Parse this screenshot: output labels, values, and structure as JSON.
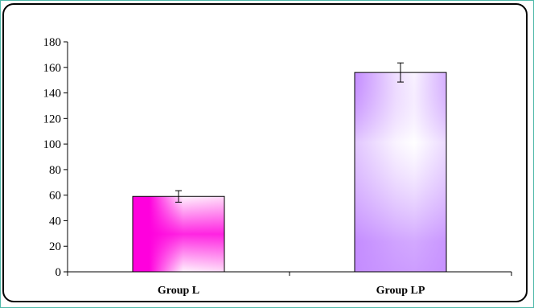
{
  "chart_data": {
    "type": "bar",
    "categories": [
      "Group L",
      "Group LP"
    ],
    "values": [
      59,
      156
    ],
    "errors": [
      4.5,
      7.5
    ],
    "ylim": [
      0,
      180
    ],
    "yticks": [
      0,
      20,
      40,
      60,
      80,
      100,
      120,
      140,
      160,
      180
    ],
    "title": "",
    "xlabel": "",
    "ylabel": "",
    "grid": false,
    "legend": "none",
    "colors": {
      "bar_1_base": "#ff00dd",
      "bar_1_light": "#ffffff",
      "bar_2_base": "#c48cff",
      "bar_2_light": "#ffffff",
      "axis": "#000000",
      "frame_border": "#000000",
      "outer_border": "#4fb9a9"
    }
  }
}
